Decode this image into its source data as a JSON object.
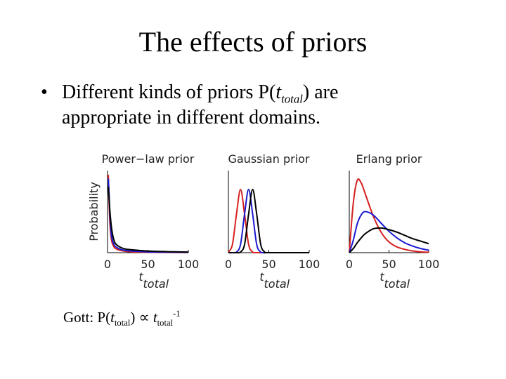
{
  "title": "The effects of priors",
  "bullet": {
    "marker": "•",
    "line1": [
      "Different kinds of priors P(",
      "t",
      "total",
      ") are"
    ],
    "line2": "appropriate in different domains."
  },
  "footnote": [
    "Gott: P(",
    "t",
    "total",
    ") ∝ ",
    "t",
    "total",
    "-1"
  ],
  "chart_data": [
    {
      "type": "line",
      "title": "Power−law prior",
      "ylabel": "Probability",
      "xlabel": "t",
      "xlabel_sub": "total",
      "xlim": [
        0,
        100
      ],
      "xticks": [
        0,
        50,
        100
      ],
      "ylim": [
        0,
        1
      ],
      "x": [
        1,
        2,
        3,
        5,
        8,
        12,
        20,
        30,
        50,
        75,
        100
      ],
      "series": [
        {
          "color": "#d62020",
          "values": [
            0.95,
            0.6,
            0.35,
            0.15,
            0.07,
            0.04,
            0.02,
            0.01,
            0.005,
            0.003,
            0.002
          ]
        },
        {
          "color": "#1a1ad0",
          "values": [
            0.9,
            0.7,
            0.45,
            0.2,
            0.1,
            0.06,
            0.03,
            0.02,
            0.01,
            0.006,
            0.004
          ]
        },
        {
          "color": "#000000",
          "values": [
            0.8,
            0.65,
            0.5,
            0.3,
            0.15,
            0.09,
            0.05,
            0.035,
            0.02,
            0.012,
            0.008
          ]
        }
      ]
    },
    {
      "type": "line",
      "title": "Gaussian prior",
      "xlabel": "t",
      "xlabel_sub": "total",
      "xlim": [
        0,
        100
      ],
      "xticks": [
        0,
        50,
        100
      ],
      "ylim": [
        0,
        1
      ],
      "x": [
        0,
        5,
        10,
        15,
        20,
        25,
        30,
        35,
        40,
        45,
        50,
        100
      ],
      "series": [
        {
          "color": "#d62020",
          "values": [
            0.008,
            0.1,
            0.47,
            0.77,
            0.47,
            0.1,
            0.008,
            0,
            0,
            0,
            0,
            0
          ]
        },
        {
          "color": "#1a1ad0",
          "values": [
            0,
            0,
            0.008,
            0.1,
            0.47,
            0.77,
            0.47,
            0.1,
            0.008,
            0,
            0,
            0
          ]
        },
        {
          "color": "#000000",
          "values": [
            0,
            0,
            0,
            0.008,
            0.1,
            0.47,
            0.77,
            0.47,
            0.1,
            0.008,
            0,
            0
          ]
        }
      ]
    },
    {
      "type": "line",
      "title": "Erlang prior",
      "xlabel": "t",
      "xlabel_sub": "total",
      "xlim": [
        0,
        100
      ],
      "xticks": [
        0,
        50,
        100
      ],
      "ylim": [
        0,
        1
      ],
      "x": [
        0,
        5,
        10,
        15,
        20,
        30,
        40,
        50,
        60,
        70,
        80,
        90,
        100
      ],
      "series": [
        {
          "color": "#d62020",
          "values": [
            0,
            0.6,
            0.88,
            0.85,
            0.72,
            0.45,
            0.25,
            0.13,
            0.07,
            0.04,
            0.02,
            0.01,
            0.005
          ]
        },
        {
          "color": "#1a1ad0",
          "values": [
            0,
            0.15,
            0.35,
            0.46,
            0.5,
            0.46,
            0.36,
            0.26,
            0.18,
            0.12,
            0.08,
            0.05,
            0.03
          ]
        },
        {
          "color": "#000000",
          "values": [
            0,
            0.05,
            0.12,
            0.18,
            0.23,
            0.29,
            0.3,
            0.28,
            0.25,
            0.21,
            0.17,
            0.14,
            0.11
          ]
        }
      ]
    }
  ]
}
